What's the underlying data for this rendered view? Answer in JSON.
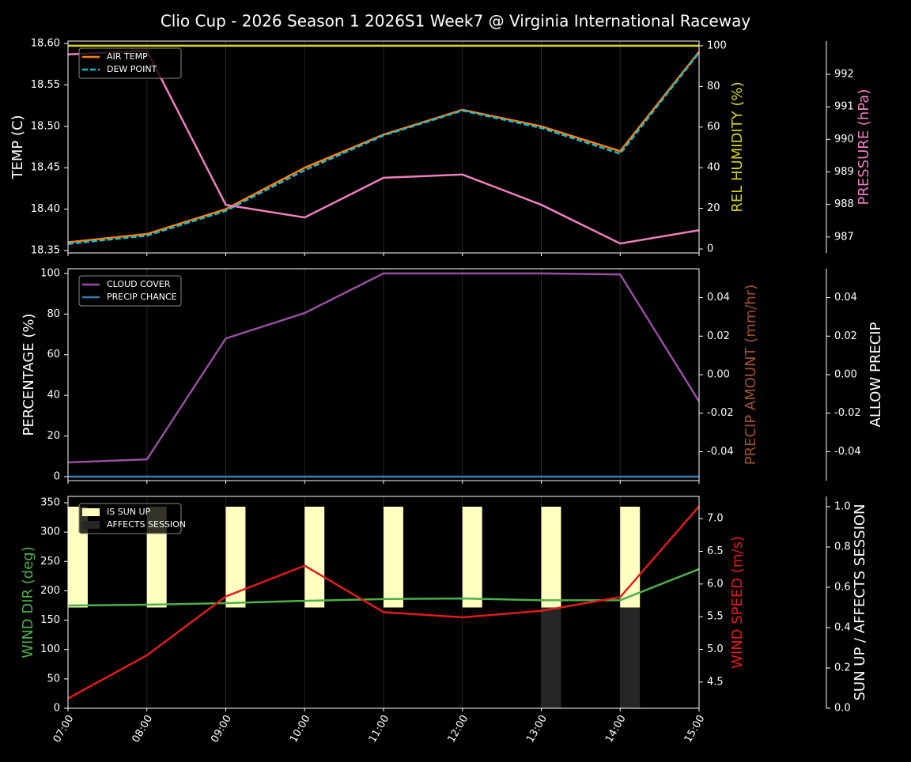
{
  "title": "Clio Cup - 2026 Season 1 2026S1 Week7 @ Virginia International Raceway",
  "chart_data": [
    {
      "type": "line",
      "ylabel": "TEMP (C)",
      "ylabel_color": "#ffffff",
      "ylim": [
        18.3471,
        18.6029
      ],
      "yticks": [
        18.35,
        {
          "value": 18.4,
          "label": "18.40"
        },
        18.45,
        {
          "value": 18.5,
          "label": "18.50"
        },
        18.55,
        {
          "value": 18.6,
          "label": "18.60"
        }
      ],
      "y2label": "REL HUMIDITY (%)",
      "y2label_color": "#d4d41a",
      "y2lim": [
        -1.95,
        102.3
      ],
      "y2ticks": [
        0,
        20,
        40,
        60,
        80,
        100
      ],
      "y3label": "PRESSURE (hPa)",
      "y3label_color": "#f07fbf",
      "y3lim": [
        986.51,
        993.02
      ],
      "y3ticks": [
        987,
        988,
        989,
        990,
        991,
        992
      ],
      "legend": "upper left",
      "series": [
        {
          "name": "AIR TEMP",
          "color": "#ff7f0e",
          "axis": "y",
          "legend": true,
          "values": [
            18.36,
            18.37,
            18.4,
            18.45,
            18.49,
            18.52,
            18.5,
            18.47,
            18.59
          ]
        },
        {
          "name": "DEW POINT",
          "color": "#17becf",
          "axis": "y",
          "legend": true,
          "dash": true,
          "values": [
            18.358,
            18.368,
            18.398,
            18.447,
            18.489,
            18.519,
            18.498,
            18.467,
            18.589
          ]
        },
        {
          "name": "REL HUMIDITY",
          "color": "#d4d41a",
          "axis": "y2",
          "legend": false,
          "values": [
            100,
            100,
            100,
            100,
            100,
            100,
            100,
            100,
            100
          ]
        },
        {
          "name": "PRESSURE",
          "color": "#f07fbf",
          "axis": "y3",
          "legend": false,
          "values": [
            992.61,
            992.73,
            987.99,
            987.6,
            988.82,
            988.92,
            987.99,
            986.8,
            987.21
          ]
        }
      ]
    },
    {
      "type": "line",
      "ylabel": "PERCENTAGE (%)",
      "ylabel_color": "#ffffff",
      "ylim": [
        -1.95,
        102.3
      ],
      "yticks": [
        0,
        20,
        40,
        60,
        80,
        100
      ],
      "y2label": "PRECIP AMOUNT (mm/hr)",
      "y2label_color": "#a0522d",
      "y2lim": [
        -0.055,
        0.055
      ],
      "y2ticks": [
        -0.04,
        -0.02,
        {
          "value": 0,
          "label": "0.00"
        },
        0.02,
        0.04
      ],
      "y3label": "ALLOW PRECIP",
      "y3label_color": "#ffffff",
      "y3lim": [
        -0.055,
        0.055
      ],
      "y3ticks": [
        -0.04,
        -0.02,
        {
          "value": 0,
          "label": "0.00"
        },
        0.02,
        0.04
      ],
      "legend": "upper left",
      "series": [
        {
          "name": "CLOUD COVER",
          "color": "#984ea3",
          "axis": "y",
          "legend": true,
          "values": [
            7,
            8.5,
            68,
            80.5,
            100,
            100,
            100,
            99.5,
            37
          ]
        },
        {
          "name": "PRECIP CHANCE",
          "color": "#377eb8",
          "axis": "y",
          "legend": true,
          "values": [
            0,
            0,
            0,
            0,
            0,
            0,
            0,
            0,
            0
          ]
        }
      ]
    },
    {
      "type": "line",
      "categories": [
        "07:00",
        "08:00",
        "09:00",
        "10:00",
        "11:00",
        "12:00",
        "13:00",
        "14:00",
        "15:00"
      ],
      "ylabel": "WIND DIR (deg)",
      "ylabel_color": "#4daf4a",
      "ylim": [
        0,
        360.8
      ],
      "yticks": [
        0,
        50,
        100,
        150,
        200,
        250,
        300,
        350
      ],
      "y2label": "WIND SPEED (m/s)",
      "y2label_color": "#e41a1c",
      "y2lim": [
        4.1,
        7.34
      ],
      "y2ticks": [
        4.5,
        {
          "value": 5,
          "label": "5.0"
        },
        5.5,
        {
          "value": 6,
          "label": "6.0"
        },
        6.5,
        {
          "value": 7,
          "label": "7.0"
        }
      ],
      "y3label": "SUN UP / AFFECTS SESSION",
      "y3label_color": "#ffffff",
      "y3lim": [
        0,
        1.051
      ],
      "y3ticks": [
        {
          "value": 0,
          "label": "0.0"
        },
        0.2,
        0.4,
        0.6,
        0.8,
        {
          "value": 1,
          "label": "1.0"
        }
      ],
      "legend": "upper left",
      "series": [
        {
          "name": "IS SUN UP",
          "color": "#ffffc0",
          "axis": "y3",
          "legend": true,
          "kind": "bar",
          "base": 0.5,
          "values": [
            1,
            1,
            1,
            1,
            1,
            1,
            1,
            1,
            null
          ]
        },
        {
          "name": "AFFECTS SESSION",
          "color": "#262626",
          "axis": "y3",
          "legend": true,
          "kind": "bar",
          "values": [
            0,
            0,
            0,
            0,
            0,
            0,
            0.5,
            0.5,
            0
          ]
        },
        {
          "name": "WIND DIR",
          "color": "#4daf4a",
          "axis": "y",
          "legend": false,
          "values": [
            175,
            176.3,
            179,
            183,
            186,
            187,
            184,
            184,
            237
          ]
        },
        {
          "name": "WIND SPEED",
          "color": "#e41a1c",
          "axis": "y2",
          "legend": false,
          "values": [
            4.25,
            4.91,
            5.81,
            6.28,
            5.57,
            5.49,
            5.59,
            5.8,
            7.19
          ]
        }
      ]
    }
  ]
}
